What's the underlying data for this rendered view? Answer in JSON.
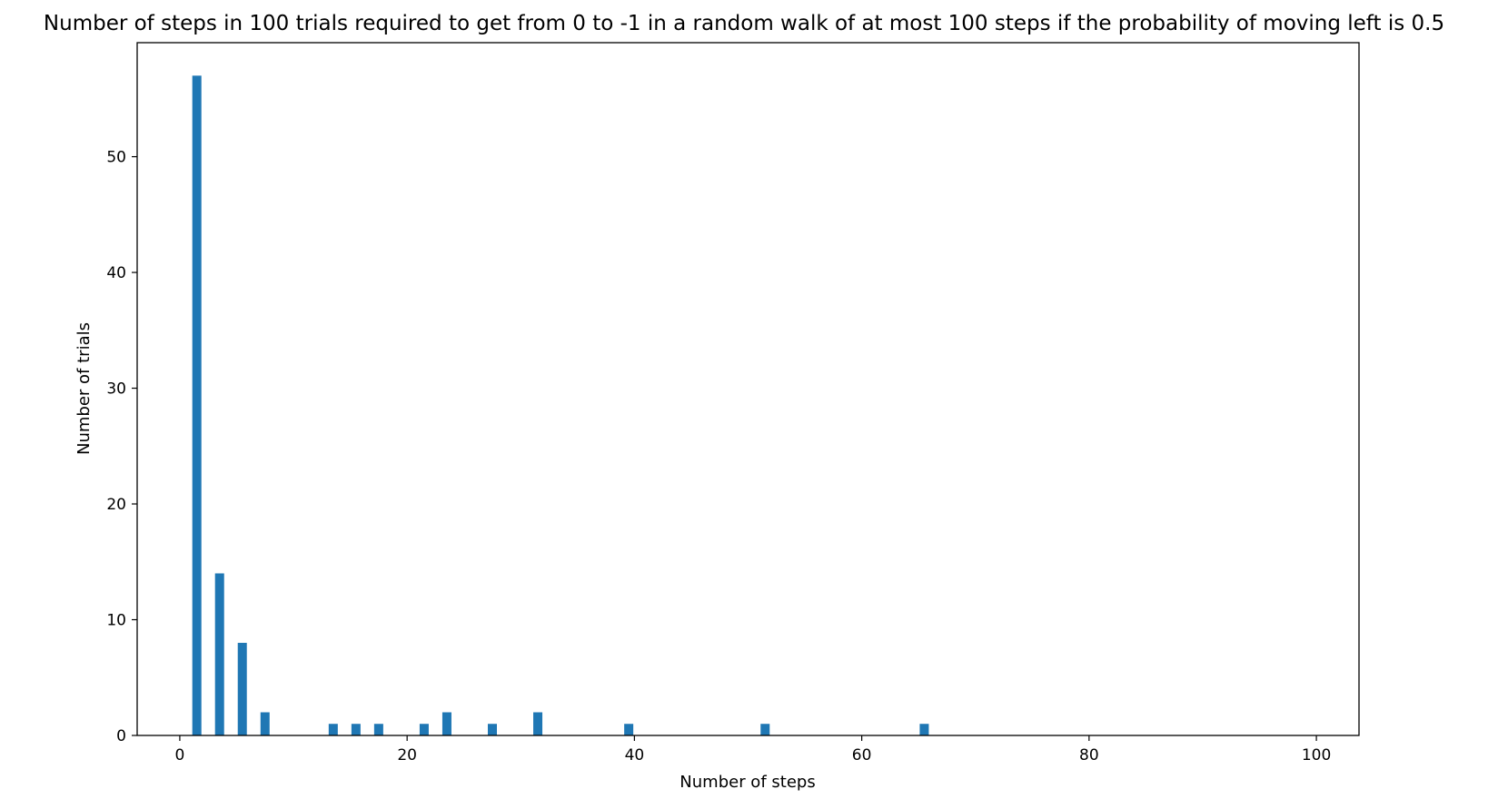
{
  "chart_data": {
    "type": "bar",
    "title": "Number of steps in 100 trials required to get from 0 to -1 in a random walk of at most 100 steps if the probability of moving left is 0.5",
    "xlabel": "Number of steps",
    "ylabel": "Number of trials",
    "xlim": [
      -3.75,
      103.75
    ],
    "ylim": [
      0,
      59.85
    ],
    "xticks": [
      0,
      20,
      40,
      60,
      80,
      100
    ],
    "yticks": [
      0,
      10,
      20,
      30,
      40,
      50
    ],
    "grid": false,
    "bar_color": "#1f77b4",
    "bar_width": 0.8,
    "x": [
      1.5,
      3.5,
      5.5,
      7.5,
      13.5,
      15.5,
      17.5,
      21.5,
      23.5,
      27.5,
      31.5,
      39.5,
      51.5,
      65.5
    ],
    "values": [
      57,
      14,
      8,
      2,
      1,
      1,
      1,
      1,
      2,
      1,
      2,
      1,
      1,
      1
    ]
  }
}
